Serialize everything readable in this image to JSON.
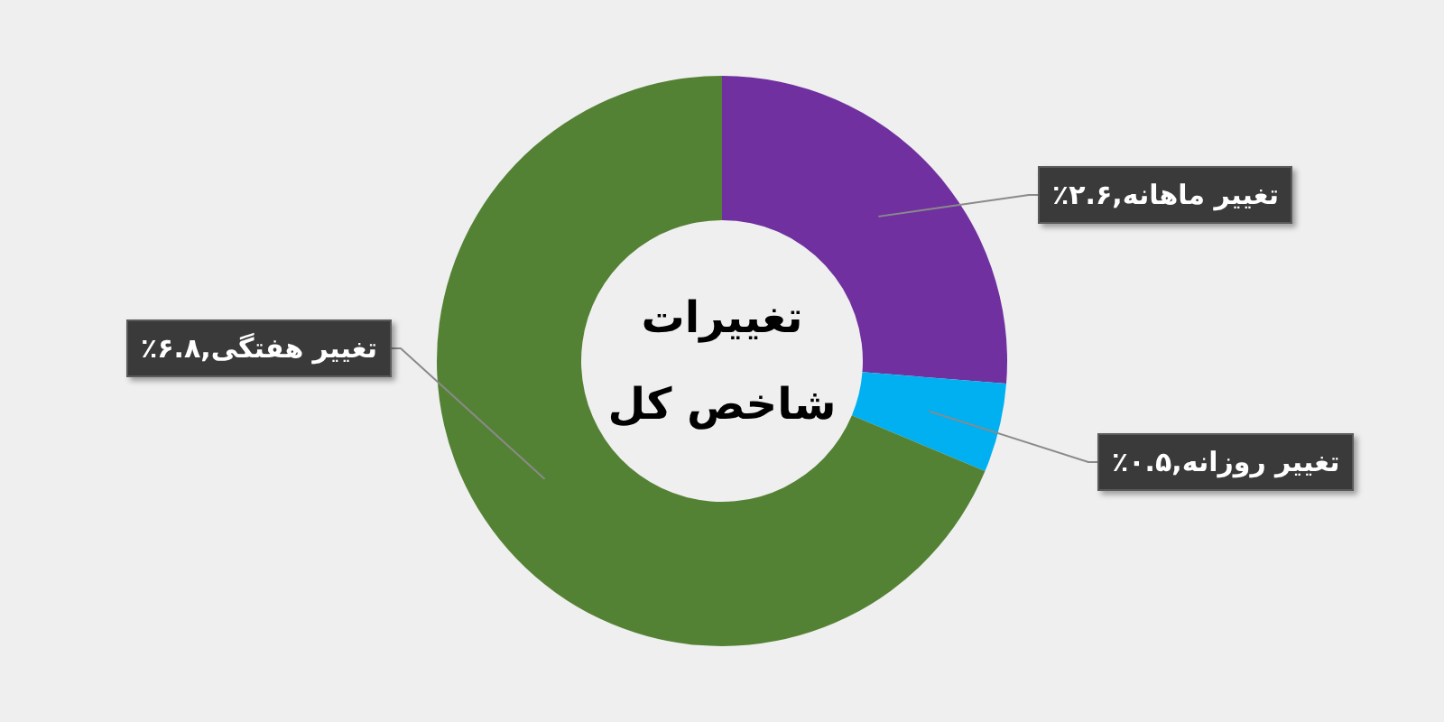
{
  "chart_data": {
    "type": "donut",
    "title": "تغییرات شاخص کل",
    "categories": [
      "تغییر ماهانه",
      "تغییر روزانه",
      "تغییر هفتگی"
    ],
    "values": [
      2.6,
      0.5,
      6.8
    ],
    "colors": [
      "#7030a0",
      "#00b0f0",
      "#548235"
    ],
    "value_labels": [
      "۲.۶٪",
      "۰.۵٪",
      "۶.۸٪"
    ]
  }
}
